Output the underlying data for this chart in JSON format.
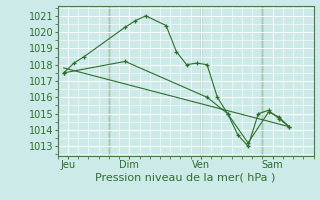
{
  "title": "Pression niveau de la mer( hPa )",
  "bg_color": "#cceae7",
  "grid_color": "#ffffff",
  "line_color": "#2d6e2d",
  "marker_color": "#2d6e2d",
  "ylim": [
    1012.4,
    1021.6
  ],
  "yticks": [
    1013,
    1014,
    1015,
    1016,
    1017,
    1018,
    1019,
    1020,
    1021
  ],
  "day_labels": [
    "Jeu",
    "Dim",
    "Ven",
    "Sam"
  ],
  "day_positions": [
    0.5,
    3.5,
    7.0,
    10.5
  ],
  "xlim": [
    0,
    12.5
  ],
  "series1_x": [
    0.3,
    0.8,
    1.3,
    3.3,
    3.8,
    4.3,
    5.3,
    5.8,
    6.3,
    6.8,
    7.3,
    7.8,
    8.3,
    8.8,
    9.3,
    9.8,
    10.3,
    10.8,
    11.3
  ],
  "series1_y": [
    1017.5,
    1018.1,
    1018.5,
    1020.3,
    1020.7,
    1021.0,
    1020.4,
    1018.8,
    1018.0,
    1018.1,
    1018.0,
    1016.0,
    1015.0,
    1013.7,
    1013.0,
    1015.0,
    1015.2,
    1014.7,
    1014.2
  ],
  "series2_x": [
    0.3,
    3.3,
    7.3,
    8.3,
    9.3,
    10.3,
    10.8,
    11.3
  ],
  "series2_y": [
    1017.5,
    1018.2,
    1016.0,
    1015.0,
    1013.2,
    1015.1,
    1014.8,
    1014.2
  ],
  "series3_x": [
    0.3,
    11.3
  ],
  "series3_y": [
    1017.8,
    1014.2
  ],
  "vline_x": [
    2.5,
    7.0,
    10.0
  ],
  "vline_color": "#4a7a4a",
  "spine_color": "#4a7a4a",
  "xlabel_fontsize": 8,
  "tick_fontsize": 7
}
